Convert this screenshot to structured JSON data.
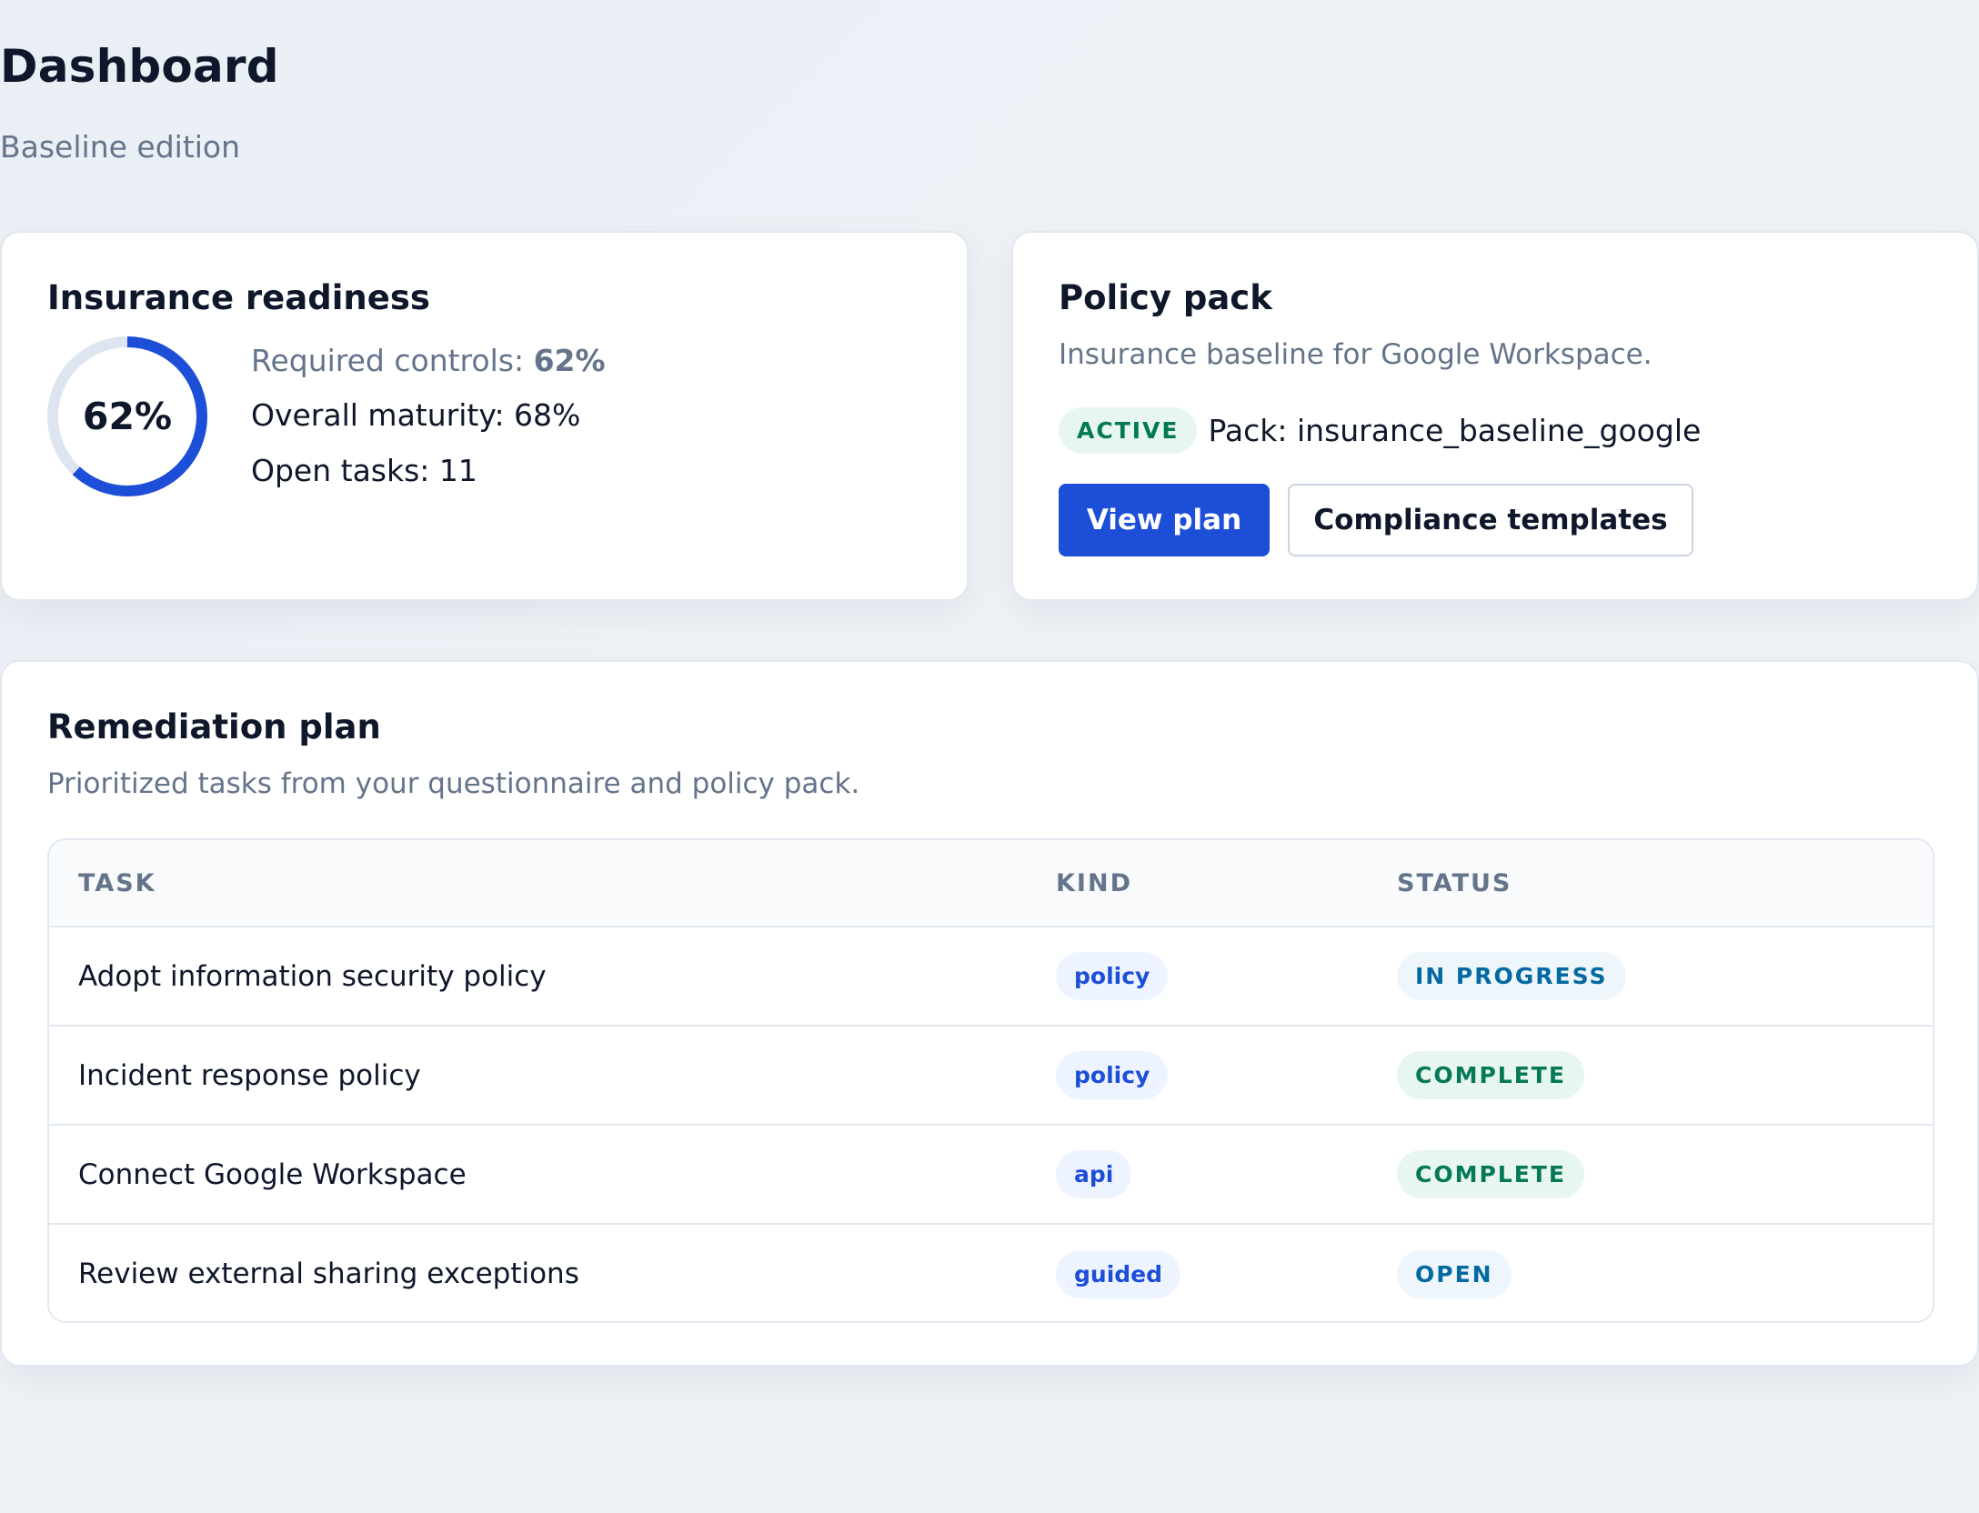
{
  "header": {
    "title": "Dashboard",
    "subtitle": "Baseline edition"
  },
  "readiness": {
    "title": "Insurance readiness",
    "ring_label": "62%",
    "ring_percent": 62,
    "required_controls_label": "Required controls: ",
    "required_controls_value": "62%",
    "overall_maturity": "Overall maturity: 68%",
    "open_tasks": "Open tasks: 11"
  },
  "policy_pack": {
    "title": "Policy pack",
    "description": "Insurance baseline for Google Workspace.",
    "status_badge": "ACTIVE",
    "pack_text": "Pack: insurance_baseline_google",
    "view_plan_label": "View plan",
    "templates_label": "Compliance templates"
  },
  "remediation": {
    "title": "Remediation plan",
    "description": "Prioritized tasks from your questionnaire and policy pack.",
    "columns": [
      "TASK",
      "KIND",
      "STATUS"
    ],
    "rows": [
      {
        "task": "Adopt information security policy",
        "kind": "policy",
        "status": "IN PROGRESS"
      },
      {
        "task": "Incident response policy",
        "kind": "policy",
        "status": "COMPLETE"
      },
      {
        "task": "Connect Google Workspace",
        "kind": "api",
        "status": "COMPLETE"
      },
      {
        "task": "Review external sharing exceptions",
        "kind": "guided",
        "status": "OPEN"
      }
    ]
  },
  "colors": {
    "accent": "#1d4ed8",
    "ring_track": "#dde5f0",
    "complete": "#047857",
    "in_progress": "#0369a1",
    "muted_text": "#64748b"
  }
}
